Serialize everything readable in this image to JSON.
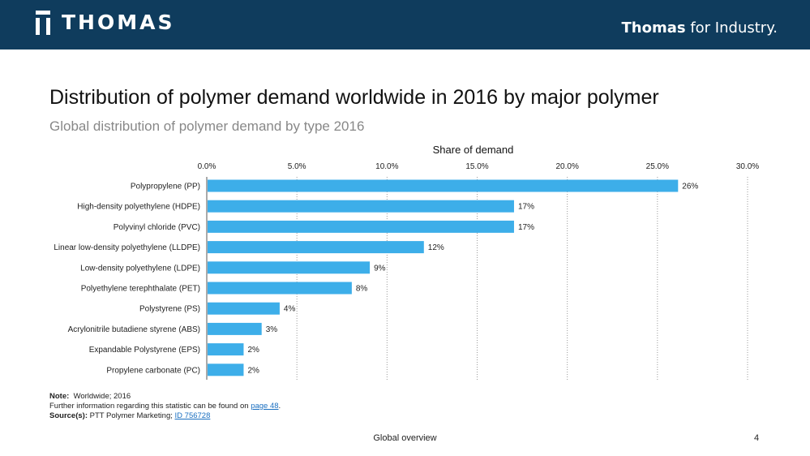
{
  "header": {
    "logo_text": "THOMAS",
    "tagline_bold": "Thomas",
    "tagline_rest": " for Industry."
  },
  "title": "Distribution of polymer demand worldwide in 2016 by major polymer",
  "subtitle": "Global distribution of polymer demand by type 2016",
  "chart_data": {
    "type": "bar",
    "orientation": "horizontal",
    "axis_title": "Share of demand",
    "x_ticks": [
      "0.0%",
      "5.0%",
      "10.0%",
      "15.0%",
      "20.0%",
      "25.0%",
      "30.0%"
    ],
    "xlim": [
      0,
      30
    ],
    "grid": "vertical dotted",
    "bar_color": "#3daee9",
    "categories": [
      "Polypropylene (PP)",
      "High-density polyethylene (HDPE)",
      "Polyvinyl chloride (PVC)",
      "Linear low-density polyethylene (LLDPE)",
      "Low-density polyethylene (LDPE)",
      "Polyethylene terephthalate (PET)",
      "Polystyrene (PS)",
      "Acrylonitrile butadiene styrene (ABS)",
      "Expandable Polystyrene (EPS)",
      "Propylene carbonate (PC)"
    ],
    "values": [
      26.1,
      17.0,
      17.0,
      12.0,
      9.0,
      8.0,
      4.0,
      3.0,
      2.0,
      2.0
    ],
    "value_labels": [
      "26%",
      "17%",
      "17%",
      "12%",
      "9%",
      "8%",
      "4%",
      "3%",
      "2%",
      "2%"
    ]
  },
  "notes": {
    "note_label": "Note:",
    "note_text": "Worldwide; 2016",
    "further_prefix": "Further information regarding this statistic can be found on ",
    "further_link": "page 48",
    "further_suffix": ".",
    "source_label": "Source(s):",
    "source_text": "PTT Polymer Marketing; ",
    "source_link": "ID 756728"
  },
  "footer": {
    "section": "Global overview",
    "page_number": "4"
  }
}
